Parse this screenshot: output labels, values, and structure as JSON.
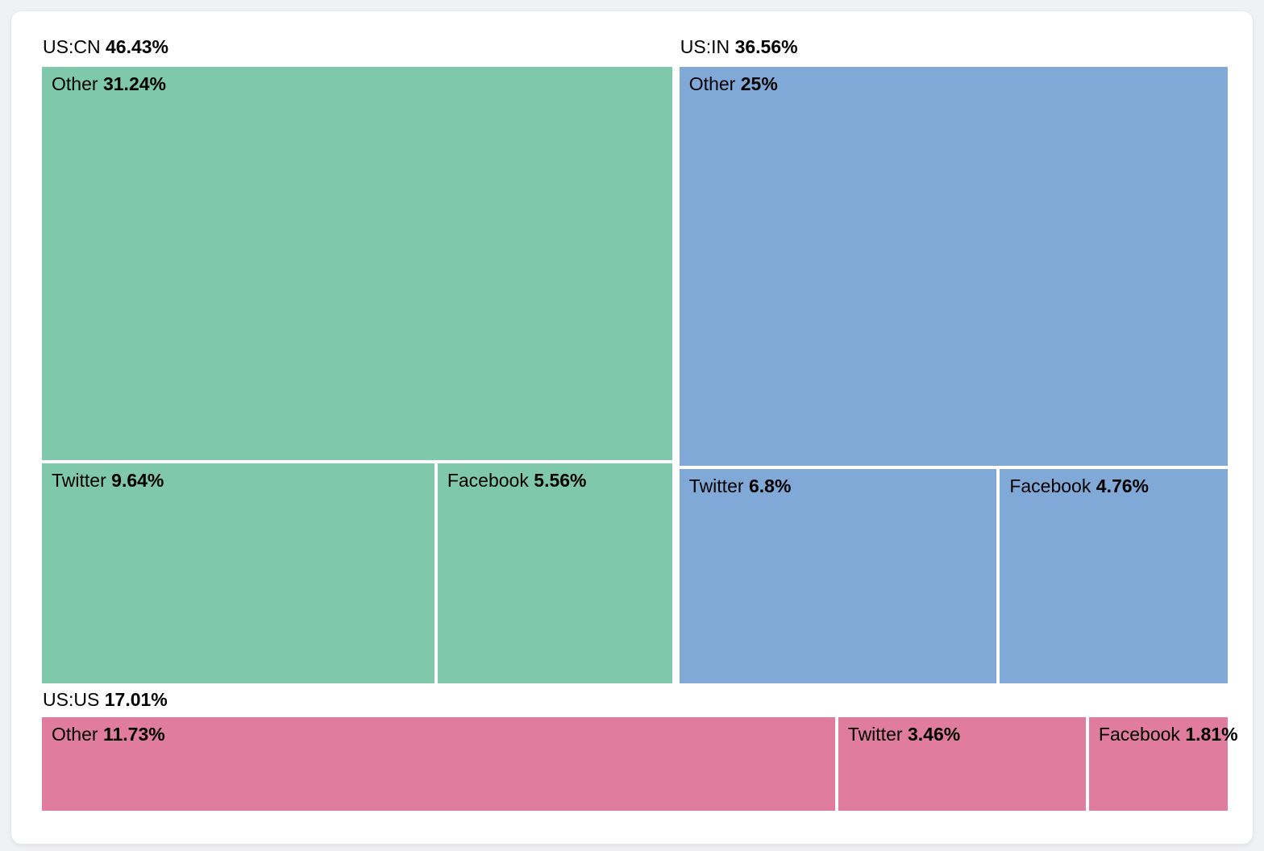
{
  "page": {
    "background_color": "#f0f1f4",
    "card_background": "#ffffff",
    "gap_color": "#ffffff",
    "text_color": "#000000"
  },
  "chart_data": {
    "type": "treemap",
    "legend_position": "none",
    "grid": false,
    "groups": [
      {
        "label": "US:CN",
        "value": 46.43,
        "value_label": "46.43%",
        "color": "#7fc8ab",
        "children": [
          {
            "label": "Other",
            "value": 31.24,
            "value_label": "31.24%"
          },
          {
            "label": "Twitter",
            "value": 9.64,
            "value_label": "9.64%"
          },
          {
            "label": "Facebook",
            "value": 5.56,
            "value_label": "5.56%"
          }
        ]
      },
      {
        "label": "US:IN",
        "value": 36.56,
        "value_label": "36.56%",
        "color": "#80a9d7",
        "children": [
          {
            "label": "Other",
            "value": 25,
            "value_label": "25%"
          },
          {
            "label": "Twitter",
            "value": 6.8,
            "value_label": "6.8%"
          },
          {
            "label": "Facebook",
            "value": 4.76,
            "value_label": "4.76%"
          }
        ]
      },
      {
        "label": "US:US",
        "value": 17.01,
        "value_label": "17.01%",
        "color": "#e07c9d",
        "children": [
          {
            "label": "Other",
            "value": 11.73,
            "value_label": "11.73%"
          },
          {
            "label": "Twitter",
            "value": 3.46,
            "value_label": "3.46%"
          },
          {
            "label": "Facebook",
            "value": 1.81,
            "value_label": "1.81%"
          }
        ]
      }
    ]
  }
}
